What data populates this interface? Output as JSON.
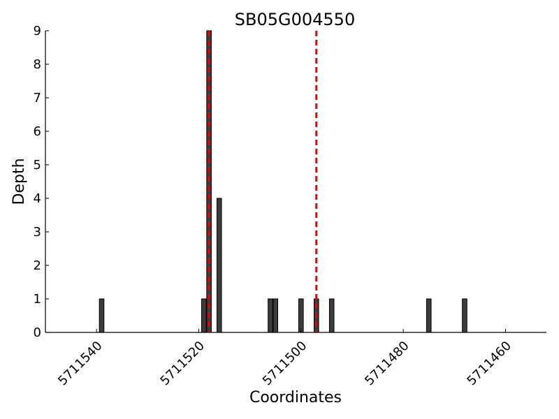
{
  "chart_data": {
    "type": "bar",
    "title": "SB05G004550",
    "xlabel": "Coordinates",
    "ylabel": "Depth",
    "x_reversed": true,
    "xlim": [
      5711550,
      5711452
    ],
    "ylim": [
      0,
      9
    ],
    "x_ticks": [
      5711540,
      5711520,
      5711500,
      5711480,
      5711460
    ],
    "x_tick_labels": [
      "5711540",
      "5711520",
      "5711500",
      "5711480",
      "5711460"
    ],
    "y_ticks": [
      0,
      1,
      2,
      3,
      4,
      5,
      6,
      7,
      8,
      9
    ],
    "y_tick_labels": [
      "0",
      "1",
      "2",
      "3",
      "4",
      "5",
      "6",
      "7",
      "8",
      "9"
    ],
    "bar_color": "#3c3c3c",
    "bars": [
      {
        "x": 5711539,
        "value": 1
      },
      {
        "x": 5711519,
        "value": 1
      },
      {
        "x": 5711518,
        "value": 9
      },
      {
        "x": 5711516,
        "value": 4
      },
      {
        "x": 5711506,
        "value": 1
      },
      {
        "x": 5711505,
        "value": 1
      },
      {
        "x": 5711500,
        "value": 1
      },
      {
        "x": 5711497,
        "value": 1
      },
      {
        "x": 5711494,
        "value": 1
      },
      {
        "x": 5711475,
        "value": 1
      },
      {
        "x": 5711468,
        "value": 1
      }
    ],
    "reference_lines": [
      {
        "x": 5711518,
        "color": "#ee0000",
        "style": "dashed"
      },
      {
        "x": 5711497,
        "color": "#ee0000",
        "style": "dashed"
      }
    ],
    "grid": false,
    "legend": "none"
  }
}
